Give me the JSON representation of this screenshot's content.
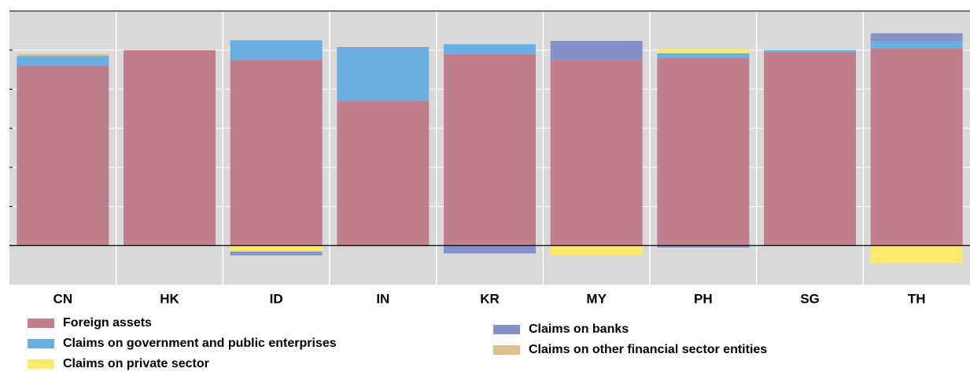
{
  "chart_data": {
    "type": "stacked_bar",
    "categories": [
      "CN",
      "HK",
      "ID",
      "IN",
      "KR",
      "MY",
      "PH",
      "SG",
      "TH"
    ],
    "series": [
      {
        "name": "Foreign assets",
        "color": "#c17f8e",
        "values": [
          92,
          100,
          95,
          74,
          98,
          95,
          96,
          99,
          101
        ]
      },
      {
        "name": "Claims on government and public enterprises",
        "color": "#6aafe1",
        "values": [
          5,
          0,
          10,
          27,
          5,
          0,
          2.4,
          1,
          3.6
        ]
      },
      {
        "name": "Claims on private sector",
        "color": "#fde96b",
        "values": [
          0,
          0,
          -3,
          0,
          0,
          -5,
          2,
          0,
          -9
        ]
      },
      {
        "name": "Claims on banks",
        "color": "#8791c9",
        "values": [
          0,
          0,
          -2,
          0.5,
          -4,
          9.7,
          -1,
          0,
          4
        ]
      },
      {
        "name": "Claims on other financial sector entities",
        "color": "#dcc08e",
        "values": [
          1,
          0,
          0,
          -0.5,
          0,
          0,
          0,
          0,
          0
        ]
      }
    ],
    "ylim": [
      -20,
      120
    ],
    "yticks": [
      0,
      20,
      40,
      60,
      80,
      100
    ],
    "grid": true
  }
}
